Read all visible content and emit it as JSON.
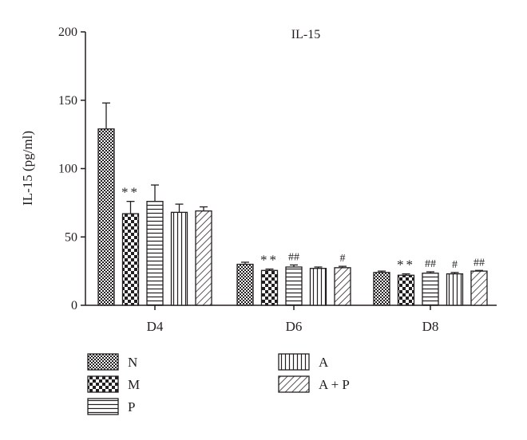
{
  "chart_data": {
    "type": "bar",
    "title": "IL-15",
    "ylabel": "IL-15 (pg/ml)",
    "xlabel": "",
    "ylim": [
      0,
      200
    ],
    "yticks": [
      0,
      50,
      100,
      150,
      200
    ],
    "categories": [
      "D4",
      "D6",
      "D8"
    ],
    "series": [
      {
        "name": "N",
        "pattern": "checker-fine",
        "values": [
          129,
          30,
          24
        ],
        "errors": [
          19,
          1.5,
          1
        ],
        "annotations": [
          "",
          "",
          ""
        ]
      },
      {
        "name": "M",
        "pattern": "checker-large",
        "values": [
          67,
          25.5,
          22
        ],
        "errors": [
          9,
          1,
          1
        ],
        "annotations": [
          "**",
          "**",
          "**"
        ]
      },
      {
        "name": "P",
        "pattern": "horizontal",
        "values": [
          76,
          28,
          23.5
        ],
        "errors": [
          12,
          1.5,
          1
        ],
        "annotations": [
          "",
          "##",
          "##"
        ]
      },
      {
        "name": "A",
        "pattern": "vertical",
        "values": [
          68,
          27,
          23
        ],
        "errors": [
          6,
          1,
          1
        ],
        "annotations": [
          "",
          "",
          "#"
        ]
      },
      {
        "name": "A + P",
        "pattern": "diagonal",
        "values": [
          69,
          27.5,
          25
        ],
        "errors": [
          3,
          1,
          0.5
        ],
        "annotations": [
          "",
          "#",
          "##"
        ]
      }
    ],
    "grid": false,
    "legend_position": "bottom"
  }
}
